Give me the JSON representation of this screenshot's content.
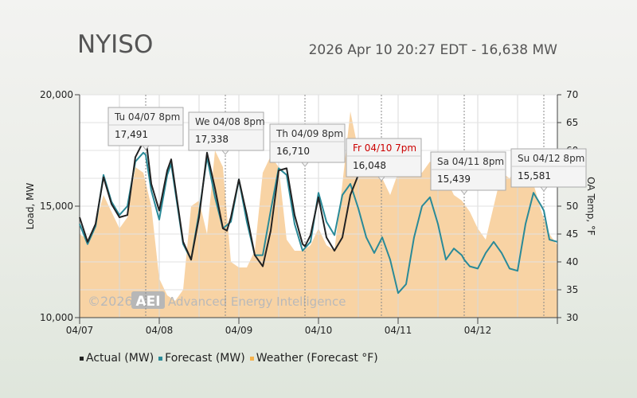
{
  "header": {
    "title": "NYISO",
    "subtitle": "2026 Apr 10 20:27 EDT - 16,638 MW"
  },
  "watermark": {
    "text": "Advanced Energy Intelligence",
    "copyright": "©2026",
    "logo": "AEI"
  },
  "colors": {
    "actual": "#222222",
    "forecast": "#2a8a98",
    "weather": "#f8d3a4",
    "today_label": "#cc0000"
  },
  "chart_data": {
    "type": "line",
    "x_ticks": [
      "04/07",
      "04/08",
      "04/09",
      "04/10",
      "04/11",
      "04/12"
    ],
    "ylabel": "Load, MW",
    "y2label": "OA Temp, °F",
    "ylim": [
      10000,
      20000
    ],
    "y_ticks": [
      "10,000",
      "15,000",
      "20,000"
    ],
    "y2lim": [
      30,
      70
    ],
    "y2_ticks": [
      "30",
      "35",
      "40",
      "45",
      "50",
      "55",
      "60",
      "65",
      "70"
    ],
    "x_range_days": [
      0,
      6
    ],
    "grid": true,
    "legend_position": "bottom-left",
    "series": [
      {
        "name": "Actual (MW)",
        "x": [
          0,
          0.1,
          0.2,
          0.3,
          0.4,
          0.5,
          0.6,
          0.7,
          0.8,
          0.83,
          0.9,
          1.0,
          1.1,
          1.15,
          1.3,
          1.4,
          1.5,
          1.6,
          1.7,
          1.8,
          1.85,
          1.9,
          2.0,
          2.1,
          2.2,
          2.3,
          2.4,
          2.5,
          2.6,
          2.7,
          2.8,
          2.83,
          2.9,
          3.0,
          3.1,
          3.2,
          3.3,
          3.4,
          3.5,
          3.6,
          3.7,
          3.8,
          3.83
        ],
        "values": [
          14500,
          13400,
          14200,
          16300,
          15100,
          14500,
          14600,
          17200,
          17900,
          18100,
          16000,
          14800,
          16600,
          17100,
          13400,
          12600,
          14500,
          17400,
          15800,
          14000,
          13900,
          14500,
          16200,
          14600,
          12800,
          12300,
          13900,
          16600,
          16700,
          14600,
          13300,
          13200,
          13700,
          15400,
          13600,
          13000,
          13600,
          15500,
          16400,
          16600,
          16600,
          16638,
          16638
        ]
      },
      {
        "name": "Forecast (MW)",
        "x": [
          0,
          0.1,
          0.2,
          0.3,
          0.4,
          0.5,
          0.6,
          0.7,
          0.8,
          0.83,
          0.9,
          1.0,
          1.1,
          1.15,
          1.3,
          1.4,
          1.5,
          1.6,
          1.7,
          1.8,
          1.9,
          2.0,
          2.1,
          2.2,
          2.3,
          2.4,
          2.5,
          2.6,
          2.7,
          2.8,
          2.9,
          3.0,
          3.1,
          3.2,
          3.3,
          3.4,
          3.5,
          3.6,
          3.7,
          3.8,
          3.9,
          4.0,
          4.1,
          4.2,
          4.3,
          4.4,
          4.5,
          4.6,
          4.7,
          4.8,
          4.83,
          4.9,
          5.0,
          5.1,
          5.2,
          5.3,
          5.4,
          5.5,
          5.6,
          5.7,
          5.8,
          5.83,
          5.9,
          6.0
        ],
        "values": [
          14200,
          13300,
          14100,
          16400,
          15200,
          14600,
          15000,
          17000,
          17400,
          17300,
          15700,
          14400,
          16400,
          16900,
          13300,
          12600,
          14700,
          17200,
          15400,
          14000,
          14300,
          16200,
          14300,
          12800,
          12800,
          14800,
          16700,
          16400,
          14200,
          13000,
          13400,
          15600,
          14300,
          13700,
          15500,
          16000,
          14900,
          13600,
          12900,
          13600,
          12600,
          11100,
          11500,
          13600,
          15000,
          15400,
          14200,
          12600,
          13100,
          12800,
          12600,
          12300,
          12200,
          12900,
          13400,
          12900,
          12200,
          12100,
          14200,
          15600,
          15000,
          14800,
          13500,
          13400
        ]
      },
      {
        "name": "Weather (Forecast °F)",
        "x": [
          0,
          0.1,
          0.2,
          0.3,
          0.4,
          0.5,
          0.6,
          0.7,
          0.8,
          0.9,
          1.0,
          1.1,
          1.2,
          1.3,
          1.4,
          1.5,
          1.6,
          1.7,
          1.8,
          1.9,
          2.0,
          2.1,
          2.2,
          2.3,
          2.4,
          2.5,
          2.6,
          2.7,
          2.8,
          2.9,
          3.0,
          3.1,
          3.2,
          3.3,
          3.4,
          3.5,
          3.6,
          3.7,
          3.8,
          3.9,
          4.0,
          4.1,
          4.2,
          4.3,
          4.4,
          4.5,
          4.6,
          4.7,
          4.8,
          4.9,
          5.0,
          5.1,
          5.2,
          5.3,
          5.4,
          5.5,
          5.6,
          5.7,
          5.8,
          5.9,
          6.0
        ],
        "values": [
          45,
          44,
          47,
          52,
          49,
          46,
          48,
          57,
          56,
          50,
          37,
          34,
          33,
          35,
          50,
          51,
          45,
          60,
          57,
          40,
          39,
          39,
          42,
          56,
          59,
          57,
          44,
          42,
          42,
          43,
          46,
          43,
          42,
          54,
          67,
          60,
          58,
          56,
          55,
          52,
          56,
          58,
          57,
          56,
          58,
          56,
          55,
          52,
          51,
          49,
          46,
          44,
          50,
          56,
          55,
          57,
          58,
          54,
          49,
          45,
          43
        ]
      }
    ],
    "annotations": [
      {
        "label": "Tu 04/07 8pm",
        "value": "17,491",
        "x": 0.83,
        "highlight": false
      },
      {
        "label": "We 04/08 8pm",
        "value": "17,338",
        "x": 1.83,
        "highlight": false
      },
      {
        "label": "Th 04/09 8pm",
        "value": "16,710",
        "x": 2.83,
        "highlight": false
      },
      {
        "label": "Fr 04/10 7pm",
        "value": "16,048",
        "x": 3.79,
        "highlight": true
      },
      {
        "label": "Sa 04/11 8pm",
        "value": "15,439",
        "x": 4.83,
        "highlight": false
      },
      {
        "label": "Su 04/12 8pm",
        "value": "15,581",
        "x": 5.83,
        "highlight": false
      }
    ]
  },
  "legend": [
    {
      "label": "Actual (MW)",
      "color": "#222222"
    },
    {
      "label": "Forecast (MW)",
      "color": "#2a8a98"
    },
    {
      "label": "Weather (Forecast °F)",
      "color": "#f5b24c"
    }
  ]
}
